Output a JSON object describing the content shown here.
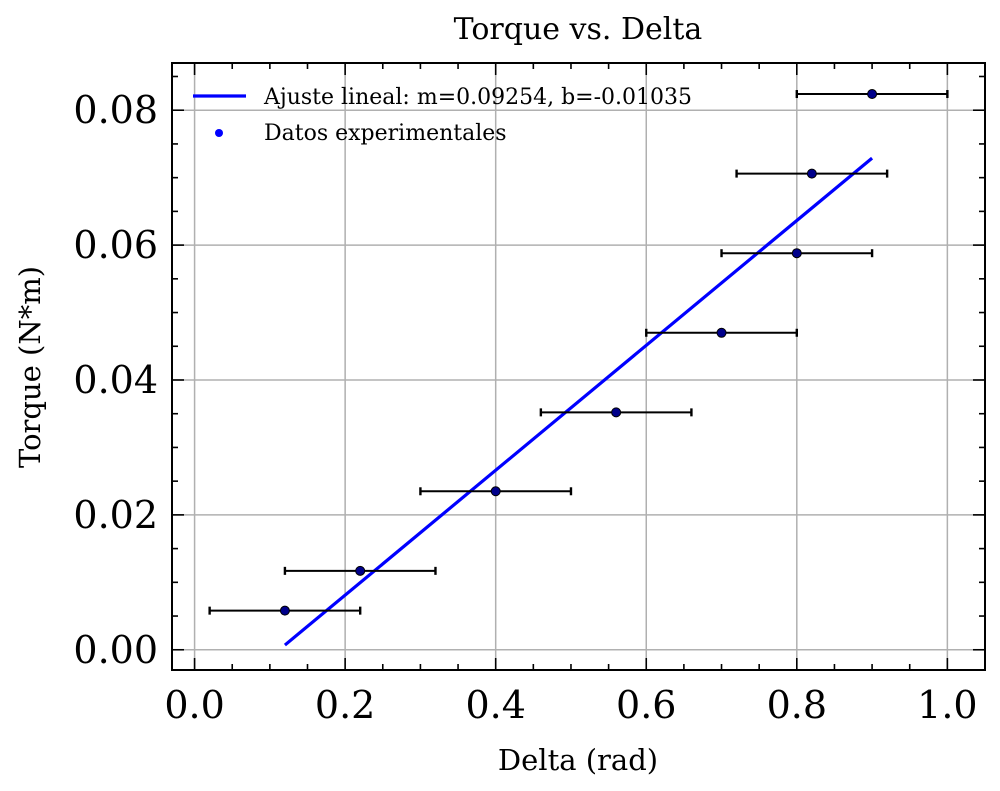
{
  "chart_data": {
    "type": "scatter",
    "title": "Torque vs. Delta",
    "xlabel": "Delta (rad)",
    "ylabel": "Torque (N*m)",
    "xlim": [
      -0.03,
      1.05
    ],
    "ylim": [
      -0.003,
      0.087
    ],
    "xticks": [
      0.0,
      0.2,
      0.4,
      0.6,
      0.8,
      1.0
    ],
    "xtick_labels": [
      "0.0",
      "0.2",
      "0.4",
      "0.6",
      "0.8",
      "1.0"
    ],
    "yticks": [
      0.0,
      0.02,
      0.04,
      0.06,
      0.08
    ],
    "ytick_labels": [
      "0.00",
      "0.02",
      "0.04",
      "0.06",
      "0.08"
    ],
    "grid": true,
    "legend_position": "top-left",
    "series": [
      {
        "name": "Ajuste lineal: m=0.09254, b=-0.01035",
        "kind": "line",
        "color": "#0000ff",
        "slope": 0.09254,
        "intercept": -0.01035,
        "x": [
          0.12,
          0.9
        ],
        "y": [
          0.0007,
          0.0729
        ]
      },
      {
        "name": "Datos experimentales",
        "kind": "scatter",
        "color": "#0000ff",
        "x": [
          0.12,
          0.22,
          0.4,
          0.56,
          0.7,
          0.8,
          0.82,
          0.9
        ],
        "y": [
          0.0058,
          0.0117,
          0.0235,
          0.0352,
          0.047,
          0.0588,
          0.0706,
          0.0824
        ],
        "xerr": [
          0.1,
          0.1,
          0.1,
          0.1,
          0.1,
          0.1,
          0.1,
          0.1
        ]
      }
    ]
  }
}
